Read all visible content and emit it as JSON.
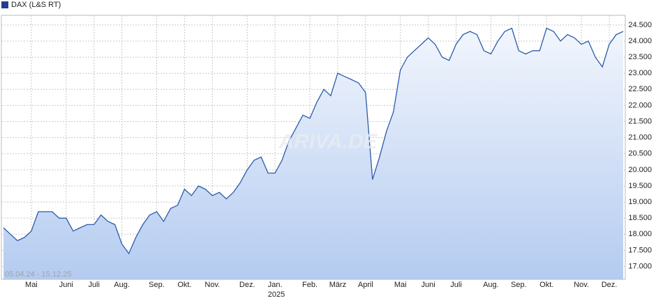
{
  "chart_data": {
    "type": "area",
    "legend": "DAX (L&S RT)",
    "date_range": "05.04.24 - 15.12.25",
    "year_label": "2025",
    "watermark": "ARIVA.DE",
    "color": "#2a5caa",
    "grid": true,
    "categories": [
      null,
      null,
      null,
      null,
      "Mai",
      null,
      null,
      null,
      null,
      "Juni",
      null,
      null,
      null,
      "Juli",
      null,
      null,
      null,
      "Aug.",
      null,
      null,
      null,
      null,
      "Sep.",
      null,
      null,
      null,
      "Okt.",
      null,
      null,
      null,
      "Nov.",
      null,
      null,
      null,
      null,
      "Dez.",
      null,
      null,
      null,
      "Jan.",
      null,
      null,
      null,
      null,
      "Feb.",
      null,
      null,
      null,
      "März",
      null,
      null,
      null,
      "April",
      null,
      null,
      null,
      null,
      "Mai",
      null,
      null,
      null,
      "Juni",
      null,
      null,
      null,
      "Juli",
      null,
      null,
      null,
      null,
      "Aug.",
      null,
      null,
      null,
      "Sep.",
      null,
      null,
      null,
      "Okt.",
      null,
      null,
      null,
      null,
      "Nov.",
      null,
      null,
      null,
      "Dez.",
      null,
      null
    ],
    "values": [
      18200,
      18000,
      17800,
      17900,
      18100,
      18700,
      18700,
      18700,
      18500,
      18500,
      18100,
      18200,
      18300,
      18300,
      18600,
      18400,
      18300,
      17700,
      17400,
      17900,
      18300,
      18600,
      18700,
      18400,
      18800,
      18900,
      19400,
      19200,
      19500,
      19400,
      19200,
      19300,
      19100,
      19300,
      19600,
      20000,
      20300,
      20400,
      19900,
      19900,
      20300,
      20900,
      21300,
      21700,
      21600,
      22100,
      22500,
      22300,
      23000,
      22900,
      22800,
      22700,
      22400,
      19700,
      20400,
      21200,
      21800,
      23100,
      23500,
      23700,
      23900,
      24100,
      23900,
      23500,
      23400,
      23900,
      24200,
      24300,
      24200,
      23700,
      23600,
      24000,
      24300,
      24400,
      23700,
      23600,
      23700,
      23700,
      24400,
      24300,
      24000,
      24200,
      24100,
      23900,
      24000,
      23500,
      23200,
      23900,
      24200,
      24300
    ],
    "ylim": [
      16600,
      24800
    ],
    "yticks": [
      {
        "value": 17000,
        "label": "17.000"
      },
      {
        "value": 17500,
        "label": "17.500"
      },
      {
        "value": 18000,
        "label": "18.000"
      },
      {
        "value": 18500,
        "label": "18.500"
      },
      {
        "value": 19000,
        "label": "19.000"
      },
      {
        "value": 19500,
        "label": "19.500"
      },
      {
        "value": 20000,
        "label": "20.000"
      },
      {
        "value": 20500,
        "label": "20.500"
      },
      {
        "value": 21000,
        "label": "21.000"
      },
      {
        "value": 21500,
        "label": "21.500"
      },
      {
        "value": 22000,
        "label": "22.000"
      },
      {
        "value": 22500,
        "label": "22.500"
      },
      {
        "value": 23000,
        "label": "23.000"
      },
      {
        "value": 23500,
        "label": "23.500"
      },
      {
        "value": 24000,
        "label": "24.000"
      },
      {
        "value": 24500,
        "label": "24.500"
      }
    ]
  }
}
